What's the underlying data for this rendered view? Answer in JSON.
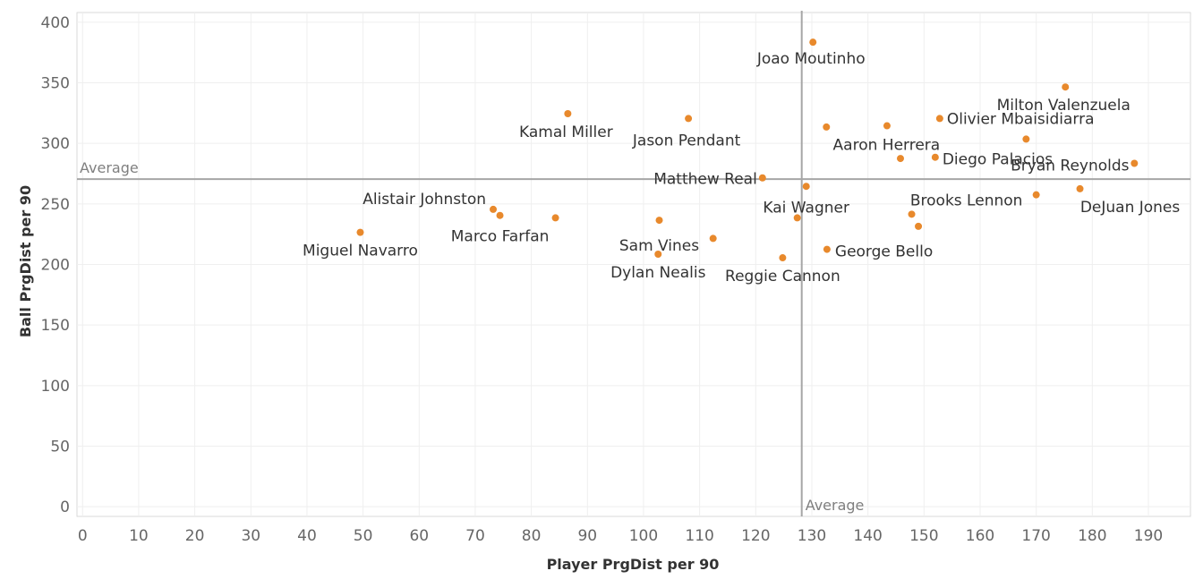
{
  "chart_data": {
    "type": "scatter",
    "title": "",
    "xlabel": "Player PrgDist per 90",
    "ylabel": "Ball PrgDist per 90",
    "xlim": [
      -1,
      197.5
    ],
    "ylim": [
      -8,
      408
    ],
    "xticks": [
      0,
      10,
      20,
      30,
      40,
      50,
      60,
      70,
      80,
      90,
      100,
      110,
      120,
      130,
      140,
      150,
      160,
      170,
      180,
      190
    ],
    "yticks": [
      0,
      50,
      100,
      150,
      200,
      250,
      300,
      350,
      400
    ],
    "grid": true,
    "marker_color": "#e8892c",
    "reference_lines": [
      {
        "axis": "x",
        "value": 128.2,
        "label": "Average"
      },
      {
        "axis": "y",
        "value": 270.5,
        "label": "Average"
      }
    ],
    "points": [
      {
        "x": 130.2,
        "y": 383.5,
        "label": "Joao Moutinho"
      },
      {
        "x": 175.2,
        "y": 346.5,
        "label": "Milton Valenzuela"
      },
      {
        "x": 86.5,
        "y": 324.5,
        "label": "Kamal Miller"
      },
      {
        "x": 108.0,
        "y": 320.5,
        "label": "Jason Pendant"
      },
      {
        "x": 152.8,
        "y": 320.5,
        "label": "Olivier Mbaisidiarra"
      },
      {
        "x": 132.6,
        "y": 313.5,
        "label": ""
      },
      {
        "x": 143.4,
        "y": 314.5,
        "label": ""
      },
      {
        "x": 168.2,
        "y": 303.5,
        "label": "Aaron Herrera"
      },
      {
        "x": 145.8,
        "y": 287.5,
        "label": ""
      },
      {
        "x": 152.0,
        "y": 288.5,
        "label": "Diego Palacios"
      },
      {
        "x": 187.5,
        "y": 283.5,
        "label": "Bryan Reynolds"
      },
      {
        "x": 121.2,
        "y": 271.5,
        "label": "Matthew Real"
      },
      {
        "x": 129.0,
        "y": 264.5,
        "label": ""
      },
      {
        "x": 177.8,
        "y": 262.5,
        "label": "DeJuan Jones"
      },
      {
        "x": 170.0,
        "y": 257.5,
        "label": "Brooks Lennon"
      },
      {
        "x": 73.2,
        "y": 245.5,
        "label": "Alistair Johnston"
      },
      {
        "x": 74.4,
        "y": 240.5,
        "label": ""
      },
      {
        "x": 84.3,
        "y": 238.5,
        "label": "Marco Farfan"
      },
      {
        "x": 127.4,
        "y": 238.5,
        "label": "Kai Wagner"
      },
      {
        "x": 147.8,
        "y": 241.5,
        "label": ""
      },
      {
        "x": 102.8,
        "y": 236.5,
        "label": "Sam Vines"
      },
      {
        "x": 149.0,
        "y": 231.5,
        "label": ""
      },
      {
        "x": 49.5,
        "y": 226.5,
        "label": "Miguel Navarro"
      },
      {
        "x": 112.4,
        "y": 221.5,
        "label": ""
      },
      {
        "x": 132.7,
        "y": 212.5,
        "label": "George Bello"
      },
      {
        "x": 102.6,
        "y": 208.5,
        "label": "Dylan Nealis"
      },
      {
        "x": 124.8,
        "y": 205.5,
        "label": "Reggie Cannon"
      }
    ]
  }
}
